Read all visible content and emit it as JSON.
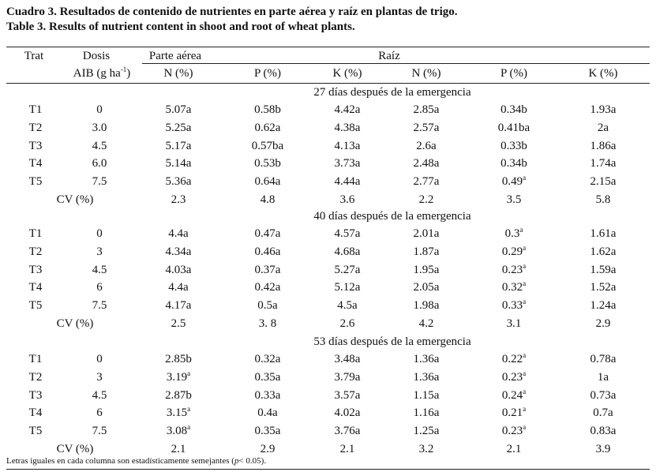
{
  "caption_es": "Cuadro 3. Resultados de contenido de nutrientes en parte aérea y raíz en plantas de trigo.",
  "caption_en": "Table 3. Results of nutrient content in shoot and root of wheat plants.",
  "header": {
    "trat": "Trat",
    "dosis_line1": "Dosis",
    "dosis_line2": "AIB (g ha",
    "dosis_exp": "-1",
    "dosis_close": ")",
    "parte_aerea": "Parte aérea",
    "raiz": "Raíz",
    "columns": [
      "N (%)",
      "P (%)",
      "K (%)",
      "N (%)",
      "P (%)",
      "K (%)"
    ]
  },
  "sections": [
    {
      "title": "27 días después de la emergencia",
      "rows": [
        {
          "trat": "T1",
          "dosis": "0",
          "vals": [
            "5.07a",
            "0.58b",
            "4.42a",
            "2.85a",
            "0.34b",
            "1.93a"
          ]
        },
        {
          "trat": "T2",
          "dosis": "3.0",
          "vals": [
            "5.25a",
            "0.62a",
            "4.38a",
            "2.57a",
            "0.41ba",
            "2a"
          ]
        },
        {
          "trat": "T3",
          "dosis": "4.5",
          "vals": [
            "5.17a",
            "0.57ba",
            "4.13a",
            "2.6a",
            "0.33b",
            "1.86a"
          ]
        },
        {
          "trat": "T4",
          "dosis": "6.0",
          "vals": [
            "5.14a",
            "0.53b",
            "3.73a",
            "2.48a",
            "0.34b",
            "1.74a"
          ]
        },
        {
          "trat": "T5",
          "dosis": "7.5",
          "vals": [
            "5.36a",
            "0.64a",
            "4.44a",
            "2.77a",
            "0.49|a",
            "2.15a"
          ]
        }
      ],
      "cv_label": "CV (%)",
      "cv": [
        "2.3",
        "4.8",
        "3.6",
        "2.2",
        "3.5",
        "5.8"
      ]
    },
    {
      "title": "40 días después de la emergencia",
      "rows": [
        {
          "trat": "T1",
          "dosis": "0",
          "vals": [
            "4.4a",
            "0.47a",
            "4.57a",
            "2.01a",
            "0.3|a",
            "1.61a"
          ]
        },
        {
          "trat": "T2",
          "dosis": "3",
          "vals": [
            "4.34a",
            "0.46a",
            "4.68a",
            "1.87a",
            "0.29|a",
            "1.62a"
          ]
        },
        {
          "trat": "T3",
          "dosis": "4.5",
          "vals": [
            "4.03a",
            "0.37a",
            "5.27a",
            "1.95a",
            "0.23|a",
            "1.59a"
          ]
        },
        {
          "trat": "T4",
          "dosis": "6",
          "vals": [
            "4.4a",
            "0.42a",
            "5.12a",
            "2.05a",
            "0.32|a",
            "1.52a"
          ]
        },
        {
          "trat": "T5",
          "dosis": "7.5",
          "vals": [
            "4.17a",
            "0.5a",
            "4.5a",
            "1.98a",
            "0.33|a",
            "1.24a"
          ]
        }
      ],
      "cv_label": "CV (%)",
      "cv": [
        "2.5",
        "3. 8",
        "2.6",
        "4.2",
        "3.1",
        "2.9"
      ]
    },
    {
      "title": "53 días después de la emergencia",
      "rows": [
        {
          "trat": "T1",
          "dosis": "0",
          "vals": [
            "2.85b",
            "0.32a",
            "3.48a",
            "1.36a",
            "0.22|a",
            "0.78a"
          ]
        },
        {
          "trat": "T2",
          "dosis": "3",
          "vals": [
            "3.19|a",
            "0.35a",
            "3.79a",
            "1.36a",
            "0.23|a",
            "1a"
          ]
        },
        {
          "trat": "T3",
          "dosis": "4.5",
          "vals": [
            "2.87b",
            "0.33a",
            "3.57a",
            "1.15a",
            "0.24|a",
            "0.73a"
          ]
        },
        {
          "trat": "T4",
          "dosis": "6",
          "vals": [
            "3.15|a",
            "0.4a",
            "4.02a",
            "1.16a",
            "0.21|a",
            "0.7a"
          ]
        },
        {
          "trat": "T5",
          "dosis": "7.5",
          "vals": [
            "3.08|a",
            "0.35a",
            "3.76a",
            "1.25a",
            "0.23|a",
            "0.83a"
          ]
        }
      ],
      "cv_label": "CV (%)",
      "cv": [
        "2.1",
        "2.9",
        "2.1",
        "3.2",
        "2.1",
        "3.9"
      ]
    }
  ],
  "footnote_pre": "Letras iguales en cada columna son estadísticamente semejantes (",
  "footnote_p": "p",
  "footnote_post": "< 0.05)."
}
